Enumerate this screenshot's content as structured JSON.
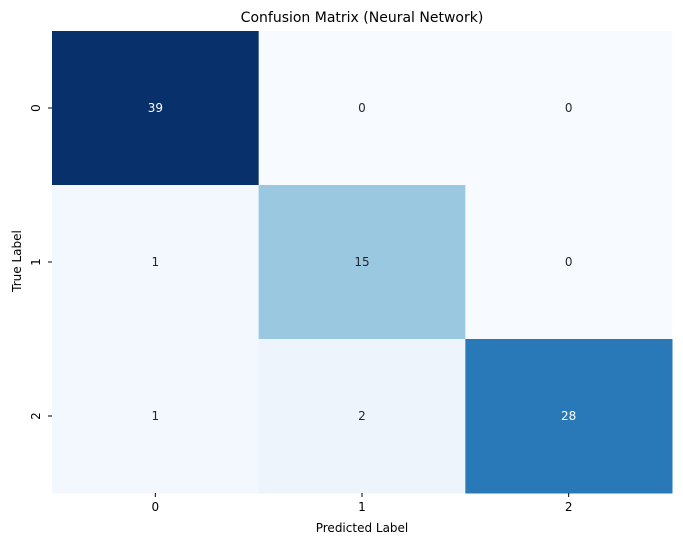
{
  "chart_data": {
    "type": "heatmap",
    "title": "Confusion Matrix (Neural Network)",
    "xlabel": "Predicted Label",
    "ylabel": "True Label",
    "x_categories": [
      "0",
      "1",
      "2"
    ],
    "y_categories": [
      "0",
      "1",
      "2"
    ],
    "values": [
      [
        39,
        0,
        0
      ],
      [
        1,
        15,
        0
      ],
      [
        1,
        2,
        28
      ]
    ],
    "colormap": "Blues",
    "vmin": 0,
    "vmax": 39,
    "colorbar": false
  }
}
